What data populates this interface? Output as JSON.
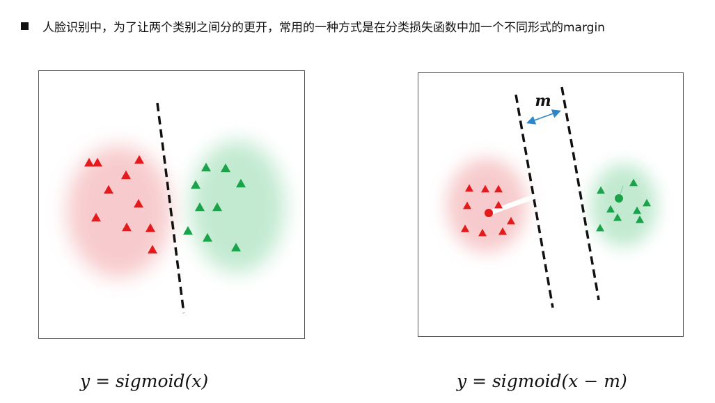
{
  "header": {
    "bullet_icon": "square-bullet-icon",
    "text": "人脸识别中，为了让两个类别之间分的更开，常用的一种方式是在分类损失函数中加一个不同形式的margin"
  },
  "colors": {
    "red_class": "#e41a1c",
    "green_class": "#1aa34a",
    "red_cloud": "#f7c6c8",
    "green_cloud": "#bfe9cf",
    "boundary": "#111111",
    "margin_arrow": "#2e86c8"
  },
  "left_diagram": {
    "formula": "y = sigmoid(x)",
    "red_count": 10,
    "green_count": 10
  },
  "right_diagram": {
    "formula": "y = sigmoid(x − m)",
    "margin_label": "m",
    "red_count": 10,
    "green_count": 10
  }
}
